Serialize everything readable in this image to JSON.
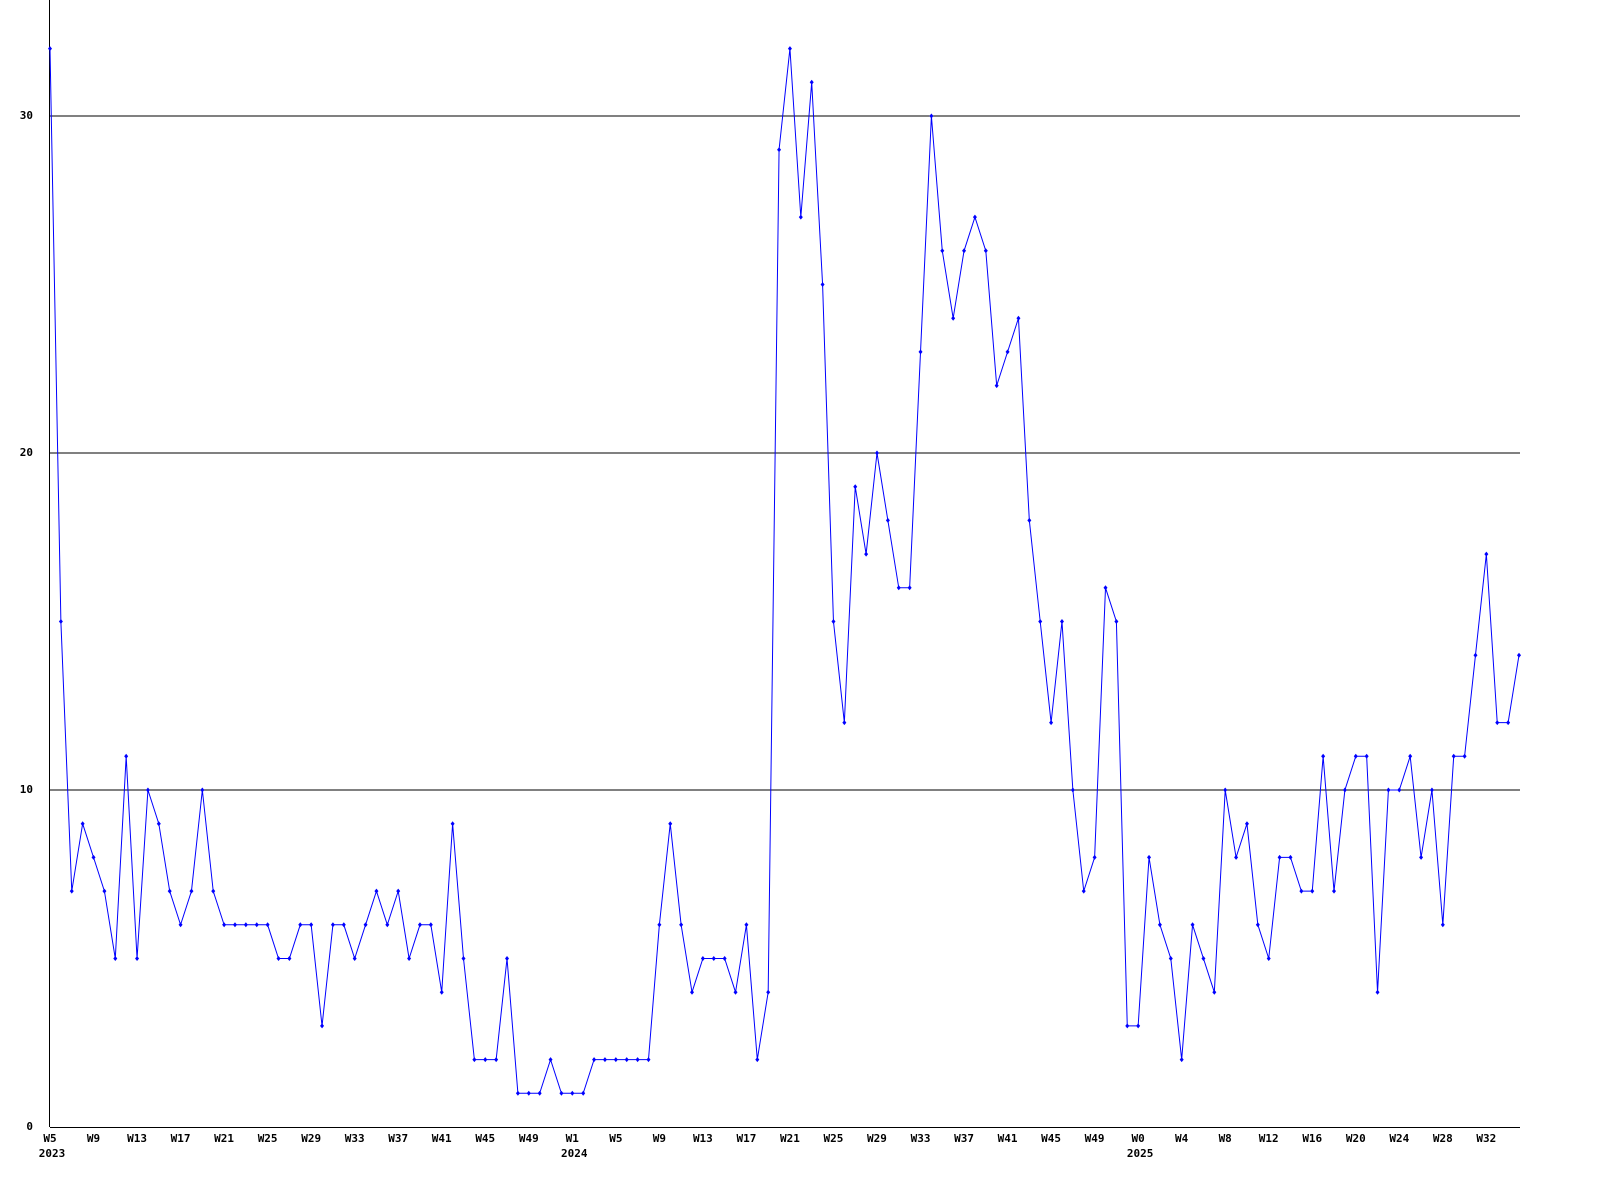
{
  "chart_data": {
    "type": "line",
    "categories": [
      "W5",
      null,
      null,
      null,
      "W9",
      null,
      null,
      null,
      "W13",
      null,
      null,
      null,
      "W17",
      null,
      null,
      null,
      "W21",
      null,
      null,
      null,
      "W25",
      null,
      null,
      null,
      "W29",
      null,
      null,
      null,
      "W33",
      null,
      null,
      null,
      "W37",
      null,
      null,
      null,
      "W41",
      null,
      null,
      null,
      "W45",
      null,
      null,
      null,
      "W49",
      null,
      null,
      null,
      "W1",
      null,
      null,
      null,
      "W5",
      null,
      null,
      null,
      "W9",
      null,
      null,
      null,
      "W13",
      null,
      null,
      null,
      "W17",
      null,
      null,
      null,
      "W21",
      null,
      null,
      null,
      "W25",
      null,
      null,
      null,
      "W29",
      null,
      null,
      null,
      "W33",
      null,
      null,
      null,
      "W37",
      null,
      null,
      null,
      "W41",
      null,
      null,
      null,
      "W45",
      null,
      null,
      null,
      "W49",
      null,
      null,
      null,
      "W0",
      null,
      null,
      null,
      "W4",
      null,
      null,
      null,
      "W8",
      null,
      null,
      null,
      "W12",
      null,
      null,
      null,
      "W16",
      null,
      null,
      null,
      "W20",
      null,
      null,
      null,
      "W24",
      null,
      null,
      null,
      "W28",
      null,
      null,
      null,
      "W32",
      null,
      null,
      null
    ],
    "category_years": [
      "2023",
      null,
      null,
      null,
      null,
      null,
      null,
      null,
      null,
      null,
      null,
      null,
      null,
      null,
      null,
      null,
      null,
      null,
      null,
      null,
      null,
      null,
      null,
      null,
      null,
      null,
      null,
      null,
      null,
      null,
      null,
      null,
      null,
      null,
      null,
      null,
      null,
      null,
      null,
      null,
      null,
      null,
      null,
      null,
      null,
      null,
      null,
      null,
      "2024",
      null,
      null,
      null,
      null,
      null,
      null,
      null,
      null,
      null,
      null,
      null,
      null,
      null,
      null,
      null,
      null,
      null,
      null,
      null,
      null,
      null,
      null,
      null,
      null,
      null,
      null,
      null,
      null,
      null,
      null,
      null,
      null,
      null,
      null,
      null,
      null,
      null,
      null,
      null,
      null,
      null,
      null,
      null,
      null,
      null,
      null,
      null,
      null,
      null,
      null,
      null,
      "2025",
      null,
      null,
      null,
      null,
      null,
      null,
      null,
      null,
      null,
      null,
      null,
      null,
      null,
      null,
      null,
      null,
      null,
      null,
      null,
      null,
      null,
      null,
      null,
      null,
      null,
      null,
      null,
      null,
      null,
      null,
      null,
      null,
      null,
      null,
      null
    ],
    "series": [
      {
        "color": "#0000ff",
        "values": [
          32,
          15,
          7,
          9,
          8,
          7,
          5,
          11,
          5,
          10,
          9,
          7,
          6,
          7,
          10,
          7,
          6,
          6,
          6,
          6,
          6,
          5,
          5,
          6,
          6,
          3,
          6,
          6,
          5,
          6,
          7,
          6,
          7,
          5,
          6,
          6,
          4,
          9,
          5,
          2,
          2,
          2,
          5,
          1,
          1,
          1,
          2,
          1,
          1,
          1,
          2,
          2,
          2,
          2,
          2,
          2,
          6,
          9,
          6,
          4,
          5,
          5,
          5,
          4,
          6,
          2,
          4,
          29,
          32,
          27,
          31,
          25,
          15,
          12,
          19,
          17,
          20,
          18,
          16,
          16,
          23,
          30,
          26,
          24,
          26,
          27,
          26,
          22,
          23,
          24,
          18,
          15,
          12,
          15,
          10,
          7,
          8,
          16,
          15,
          3,
          3,
          8,
          6,
          5,
          2,
          6,
          5,
          4,
          10,
          8,
          9,
          6,
          5,
          8,
          8,
          7,
          7,
          11,
          7,
          10,
          11,
          11,
          4,
          10,
          10,
          11,
          8,
          10,
          6,
          11,
          11,
          14,
          17,
          12,
          12,
          14
        ]
      }
    ],
    "ylim": [
      0,
      33.4
    ],
    "yticks": [
      0,
      10,
      20,
      30
    ],
    "grid": true
  }
}
